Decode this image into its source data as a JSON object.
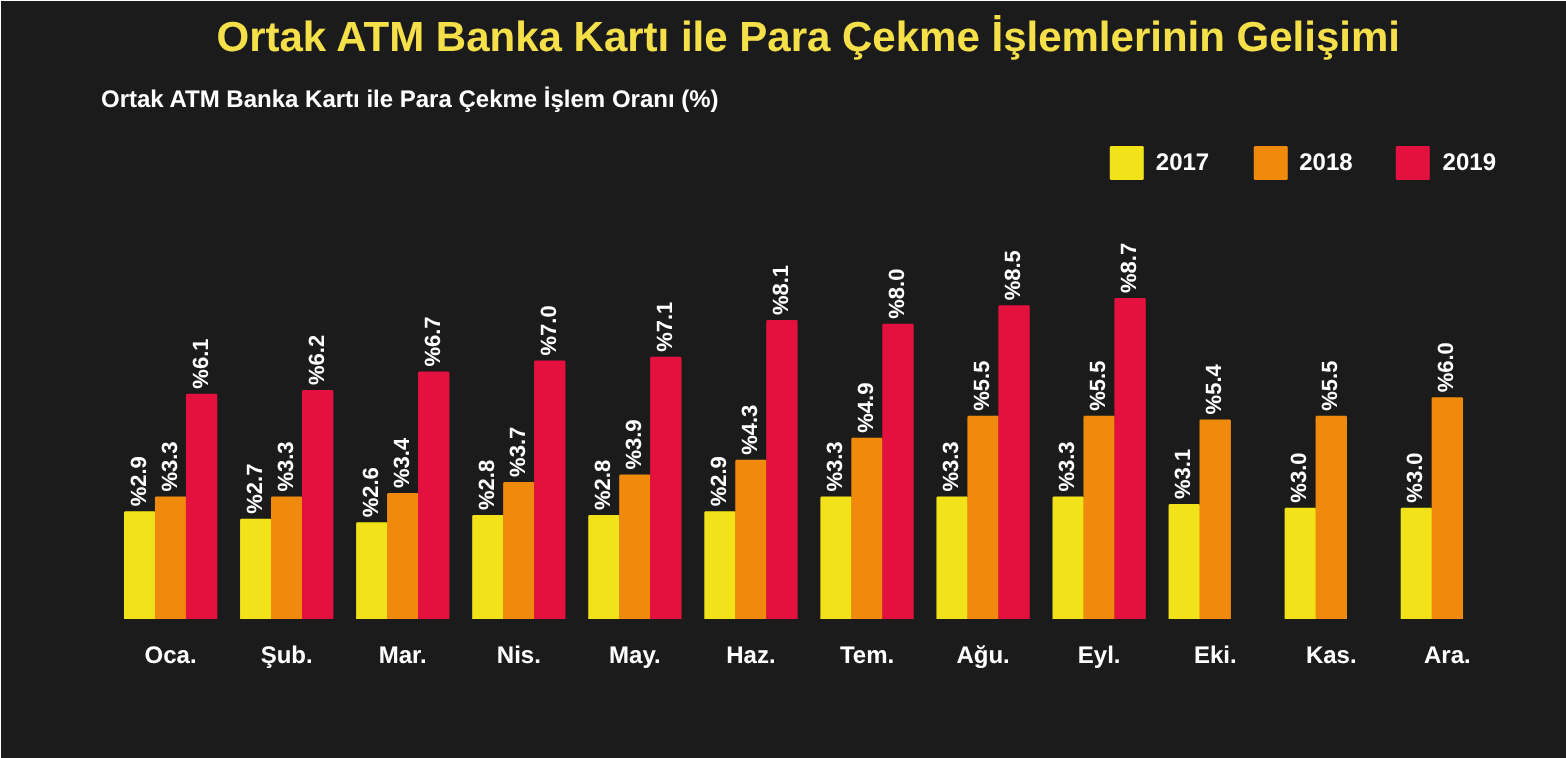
{
  "chart_data": {
    "type": "bar",
    "title": "Ortak ATM Banka Kartı ile Para Çekme İşlemlerinin Gelişimi",
    "subtitle": "Ortak ATM Banka Kartı ile Para Çekme İşlem Oranı (%)",
    "categories": [
      "Oca.",
      "Şub.",
      "Mar.",
      "Nis.",
      "May.",
      "Haz.",
      "Tem.",
      "Ağu.",
      "Eyl.",
      "Eki.",
      "Kas.",
      "Ara."
    ],
    "series": [
      {
        "name": "2017",
        "color": "#f2e21a",
        "values": [
          2.9,
          2.7,
          2.6,
          2.8,
          2.8,
          2.9,
          3.3,
          3.3,
          3.3,
          3.1,
          3.0,
          3.0
        ],
        "value_labels": [
          "%2.9",
          "%2.7",
          "%2.6",
          "%2.8",
          "%2.8",
          "%2.9",
          "%3.3",
          "%3.3",
          "%3.3",
          "%3.1",
          "%3.0",
          "%3.0"
        ]
      },
      {
        "name": "2018",
        "color": "#f08a0c",
        "values": [
          3.3,
          3.3,
          3.4,
          3.7,
          3.9,
          4.3,
          4.9,
          5.5,
          5.5,
          5.4,
          5.5,
          6.0
        ],
        "value_labels": [
          "%3.3",
          "%3.3",
          "%3.4",
          "%3.7",
          "%3.9",
          "%4.3",
          "%4.9",
          "%5.5",
          "%5.5",
          "%5.4",
          "%5.5",
          "%6.0"
        ]
      },
      {
        "name": "2019",
        "color": "#e4113f",
        "values": [
          6.1,
          6.2,
          6.7,
          7.0,
          7.1,
          8.1,
          8.0,
          8.5,
          8.7,
          null,
          null,
          null
        ],
        "value_labels": [
          "%6.1",
          "%6.2",
          "%6.7",
          "%7.0",
          "%7.1",
          "%8.1",
          "%8.0",
          "%8.5",
          "%8.7",
          null,
          null,
          null
        ]
      }
    ],
    "legend": "top right",
    "grid": false
  }
}
